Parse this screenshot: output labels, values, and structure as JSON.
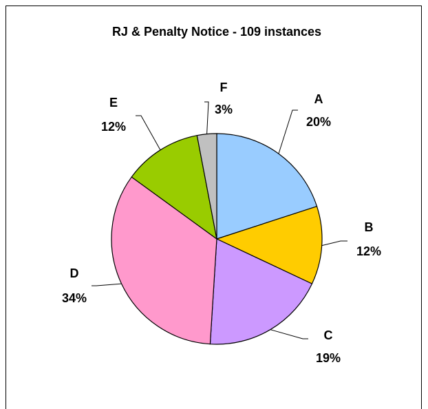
{
  "chart_data": {
    "type": "pie",
    "title": "RJ & Penalty Notice - 109 instances",
    "categories": [
      "A",
      "B",
      "C",
      "D",
      "E",
      "F"
    ],
    "values": [
      20,
      12,
      19,
      34,
      12,
      3
    ],
    "value_labels": [
      "20%",
      "12%",
      "19%",
      "34%",
      "12%",
      "3%"
    ],
    "colors": [
      "#99ccff",
      "#ffcc00",
      "#cc99ff",
      "#ff99cc",
      "#99cc00",
      "#c0c0c0"
    ]
  }
}
